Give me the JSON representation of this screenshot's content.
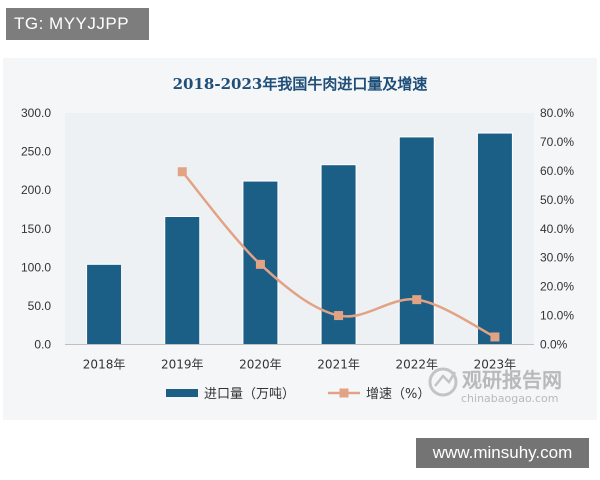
{
  "top_tag": "TG: MYYJJPP",
  "bottom_tag": "www.minsuhy.com",
  "watermark": {
    "main": "观研报告网",
    "sub": "chinabaogao.com"
  },
  "colors": {
    "bar": "#1b5f86",
    "line": "#e2a385",
    "grid": "#ffffff",
    "panel": "#f4f6f8",
    "title": "#1f4e79"
  },
  "chart_data": {
    "type": "bar",
    "title": "2018-2023年我国牛肉进口量及增速",
    "categories": [
      "2018年",
      "2019年",
      "2020年",
      "2021年",
      "2022年",
      "2023年"
    ],
    "series": [
      {
        "name": "进口量（万吨）",
        "type": "bar",
        "axis": "left",
        "values": [
          103.9,
          165.9,
          211.8,
          233.0,
          269.0,
          274.0
        ]
      },
      {
        "name": "增速（%）",
        "type": "line",
        "axis": "right",
        "values": [
          null,
          59.7,
          27.7,
          10.0,
          15.5,
          2.6
        ]
      }
    ],
    "y_left": {
      "min": 0,
      "max": 300,
      "step": 50,
      "ticks": [
        "0.0",
        "50.0",
        "100.0",
        "150.0",
        "200.0",
        "250.0",
        "300.0"
      ]
    },
    "y_right": {
      "min": 0,
      "max": 80,
      "step": 10,
      "ticks": [
        "0.0%",
        "10.0%",
        "20.0%",
        "30.0%",
        "40.0%",
        "50.0%",
        "60.0%",
        "70.0%",
        "80.0%"
      ]
    },
    "legend_position": "bottom",
    "grid": "none"
  }
}
